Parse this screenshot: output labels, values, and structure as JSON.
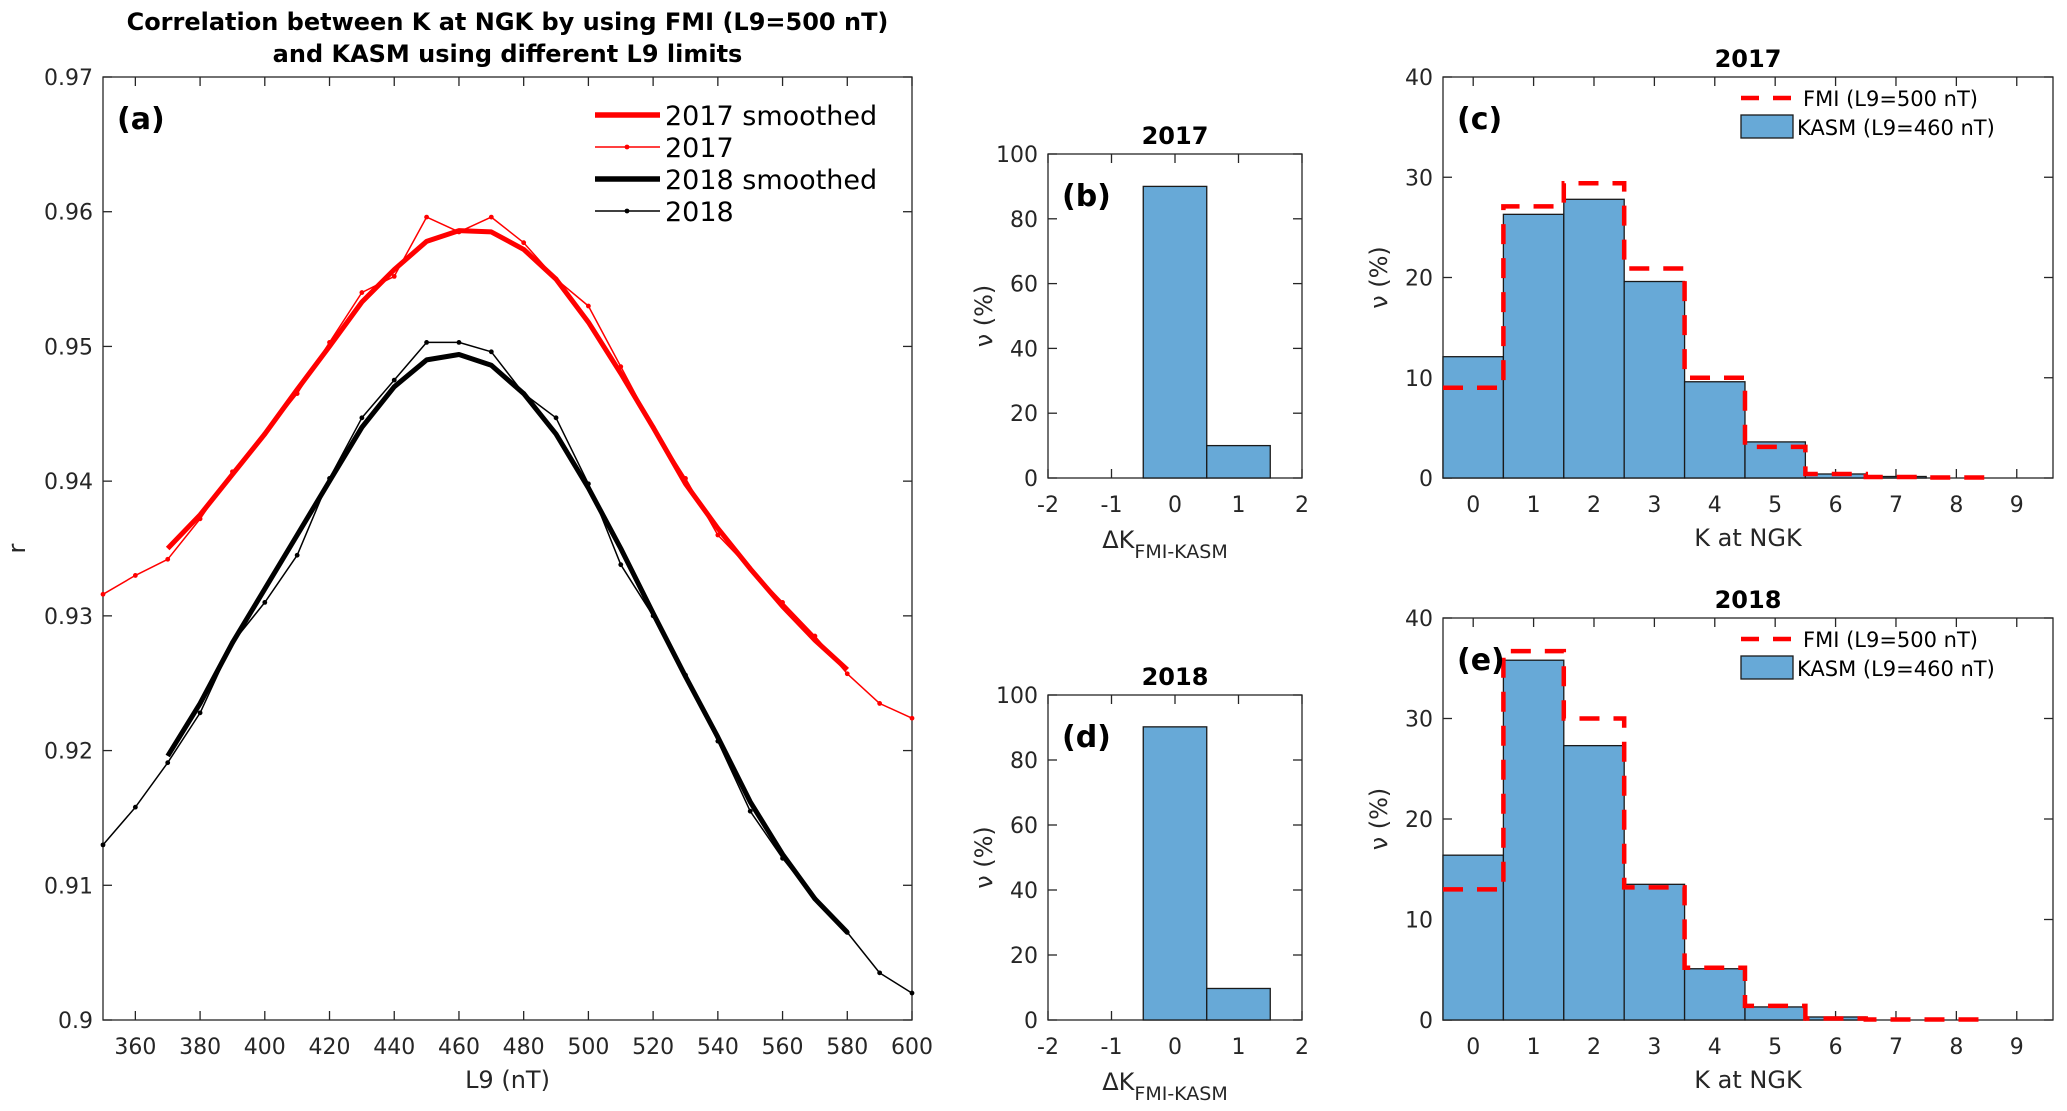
{
  "figure": {
    "background": "#ffffff",
    "colors": {
      "red": "#ff0000",
      "black": "#000000",
      "bar_fill": "#67a9d7",
      "bar_edge": "#1a1a1a"
    }
  },
  "chart_data": [
    {
      "id": "a",
      "type": "line",
      "panel_label": "(a)",
      "title": [
        "Correlation between K at NGK by using FMI (L9=500 nT)",
        "and KASM using different L9 limits"
      ],
      "xlabel": "L9 (nT)",
      "ylabel": "r",
      "xlim": [
        350,
        600
      ],
      "ylim": [
        0.9,
        0.97
      ],
      "xticks": [
        360,
        380,
        400,
        420,
        440,
        460,
        480,
        500,
        520,
        540,
        560,
        580,
        600
      ],
      "xtick_labels": [
        "360",
        "380",
        "400",
        "420",
        "440",
        "460",
        "480",
        "500",
        "520",
        "540",
        "560",
        "580",
        "600"
      ],
      "yticks": [
        0.9,
        0.91,
        0.92,
        0.93,
        0.94,
        0.95,
        0.96,
        0.97
      ],
      "ytick_labels": [
        "0.9",
        "0.91",
        "0.92",
        "0.93",
        "0.94",
        "0.95",
        "0.96",
        "0.97"
      ],
      "legend_position": "top-right",
      "series": [
        {
          "name": "2017 smoothed",
          "color": "#ff0000",
          "style": "thick",
          "x": [
            370,
            380,
            390,
            400,
            410,
            420,
            430,
            440,
            450,
            460,
            470,
            480,
            490,
            500,
            510,
            520,
            530,
            540,
            550,
            560,
            570,
            580
          ],
          "y": [
            0.935,
            0.9375,
            0.9405,
            0.9435,
            0.9468,
            0.95,
            0.9533,
            0.9557,
            0.9578,
            0.9586,
            0.9585,
            0.9572,
            0.955,
            0.9518,
            0.948,
            0.944,
            0.9398,
            0.9365,
            0.9335,
            0.9307,
            0.9282,
            0.926
          ]
        },
        {
          "name": "2017",
          "color": "#ff0000",
          "style": "thin-dots",
          "x": [
            350,
            360,
            370,
            380,
            390,
            400,
            410,
            420,
            430,
            440,
            450,
            460,
            470,
            480,
            490,
            500,
            510,
            520,
            530,
            540,
            550,
            560,
            570,
            580,
            590,
            600
          ],
          "y": [
            0.9316,
            0.933,
            0.9342,
            0.9372,
            0.9407,
            0.9435,
            0.9465,
            0.9503,
            0.954,
            0.9552,
            0.9596,
            0.9585,
            0.9596,
            0.9577,
            0.955,
            0.953,
            0.9485,
            0.944,
            0.9402,
            0.936,
            0.9335,
            0.931,
            0.9285,
            0.9257,
            0.9235,
            0.9224
          ]
        },
        {
          "name": "2018 smoothed",
          "color": "#000000",
          "style": "thick",
          "x": [
            370,
            380,
            390,
            400,
            410,
            420,
            430,
            440,
            450,
            460,
            470,
            480,
            490,
            500,
            510,
            520,
            530,
            540,
            550,
            560,
            570,
            580
          ],
          "y": [
            0.9196,
            0.9235,
            0.928,
            0.932,
            0.936,
            0.94,
            0.944,
            0.947,
            0.949,
            0.9494,
            0.9486,
            0.9465,
            0.9435,
            0.9395,
            0.935,
            0.9302,
            0.9255,
            0.921,
            0.9162,
            0.9123,
            0.909,
            0.9065
          ]
        },
        {
          "name": "2018",
          "color": "#000000",
          "style": "thin-dots",
          "x": [
            350,
            360,
            370,
            380,
            390,
            400,
            410,
            420,
            430,
            440,
            450,
            460,
            470,
            480,
            490,
            500,
            510,
            520,
            530,
            540,
            550,
            560,
            570,
            580,
            590,
            600
          ],
          "y": [
            0.913,
            0.9158,
            0.9191,
            0.9228,
            0.928,
            0.931,
            0.9345,
            0.9402,
            0.9447,
            0.9475,
            0.9503,
            0.9503,
            0.9496,
            0.9465,
            0.9447,
            0.9398,
            0.9338,
            0.93,
            0.9256,
            0.9207,
            0.9155,
            0.912,
            0.909,
            0.9065,
            0.9035,
            0.902
          ]
        }
      ]
    },
    {
      "id": "b",
      "type": "bar",
      "panel_label": "(b)",
      "title": "2017",
      "xlabel_main": "ΔK",
      "xlabel_sub": "FMI-KASM",
      "ylabel": "ν (%)",
      "xlim": [
        -2,
        2
      ],
      "ylim": [
        0,
        100
      ],
      "xticks": [
        -2,
        -1,
        0,
        1,
        2
      ],
      "xtick_labels": [
        "-2",
        "-1",
        "0",
        "1",
        "2"
      ],
      "yticks": [
        0,
        20,
        40,
        60,
        80,
        100
      ],
      "ytick_labels": [
        "0",
        "20",
        "40",
        "60",
        "80",
        "100"
      ],
      "categories": [
        0,
        1
      ],
      "values": [
        90.0,
        10.0
      ]
    },
    {
      "id": "c",
      "type": "bar",
      "panel_label": "(c)",
      "title": "2017",
      "xlabel": "K at NGK",
      "ylabel": "ν (%)",
      "xlim": [
        -0.5,
        9.6
      ],
      "ylim": [
        0,
        40
      ],
      "xticks": [
        0,
        1,
        2,
        3,
        4,
        5,
        6,
        7,
        8,
        9
      ],
      "xtick_labels": [
        "0",
        "1",
        "2",
        "3",
        "4",
        "5",
        "6",
        "7",
        "8",
        "9"
      ],
      "yticks": [
        0,
        10,
        20,
        30,
        40
      ],
      "ytick_labels": [
        "0",
        "10",
        "20",
        "30",
        "40"
      ],
      "legend_position": "top-right",
      "categories": [
        0,
        1,
        2,
        3,
        4,
        5,
        6,
        7,
        8
      ],
      "series": [
        {
          "name": "FMI (L9=500 nT)",
          "kind": "dashed-step",
          "values": [
            9.0,
            27.1,
            29.4,
            20.9,
            10.0,
            3.1,
            0.4,
            0.1,
            0.05
          ]
        },
        {
          "name": "KASM (L9=460 nT)",
          "kind": "bar",
          "values": [
            12.1,
            26.3,
            27.8,
            19.6,
            9.6,
            3.6,
            0.4,
            0.15,
            0.0
          ]
        }
      ]
    },
    {
      "id": "d",
      "type": "bar",
      "panel_label": "(d)",
      "title": "2018",
      "xlabel_main": "ΔK",
      "xlabel_sub": "FMI-KASM",
      "ylabel": "ν (%)",
      "xlim": [
        -2,
        2
      ],
      "ylim": [
        0,
        100
      ],
      "xticks": [
        -2,
        -1,
        0,
        1,
        2
      ],
      "xtick_labels": [
        "-2",
        "-1",
        "0",
        "1",
        "2"
      ],
      "yticks": [
        0,
        20,
        40,
        60,
        80,
        100
      ],
      "ytick_labels": [
        "0",
        "20",
        "40",
        "60",
        "80",
        "100"
      ],
      "categories": [
        0,
        1
      ],
      "values": [
        90.2,
        9.7
      ]
    },
    {
      "id": "e",
      "type": "bar",
      "panel_label": "(e)",
      "title": "2018",
      "xlabel": "K at NGK",
      "ylabel": "ν (%)",
      "xlim": [
        -0.5,
        9.6
      ],
      "ylim": [
        0,
        40
      ],
      "xticks": [
        0,
        1,
        2,
        3,
        4,
        5,
        6,
        7,
        8,
        9
      ],
      "xtick_labels": [
        "0",
        "1",
        "2",
        "3",
        "4",
        "5",
        "6",
        "7",
        "8",
        "9"
      ],
      "yticks": [
        0,
        10,
        20,
        30,
        40
      ],
      "ytick_labels": [
        "0",
        "10",
        "20",
        "30",
        "40"
      ],
      "legend_position": "top-right",
      "categories": [
        0,
        1,
        2,
        3,
        4,
        5,
        6,
        7,
        8
      ],
      "series": [
        {
          "name": "FMI (L9=500 nT)",
          "kind": "dashed-step",
          "values": [
            13.0,
            36.7,
            30.0,
            13.2,
            5.2,
            1.4,
            0.15,
            0.05,
            0.05
          ]
        },
        {
          "name": "KASM (L9=460 nT)",
          "kind": "bar",
          "values": [
            16.4,
            35.8,
            27.3,
            13.5,
            5.1,
            1.3,
            0.3,
            0.0,
            0.0
          ]
        }
      ]
    }
  ]
}
